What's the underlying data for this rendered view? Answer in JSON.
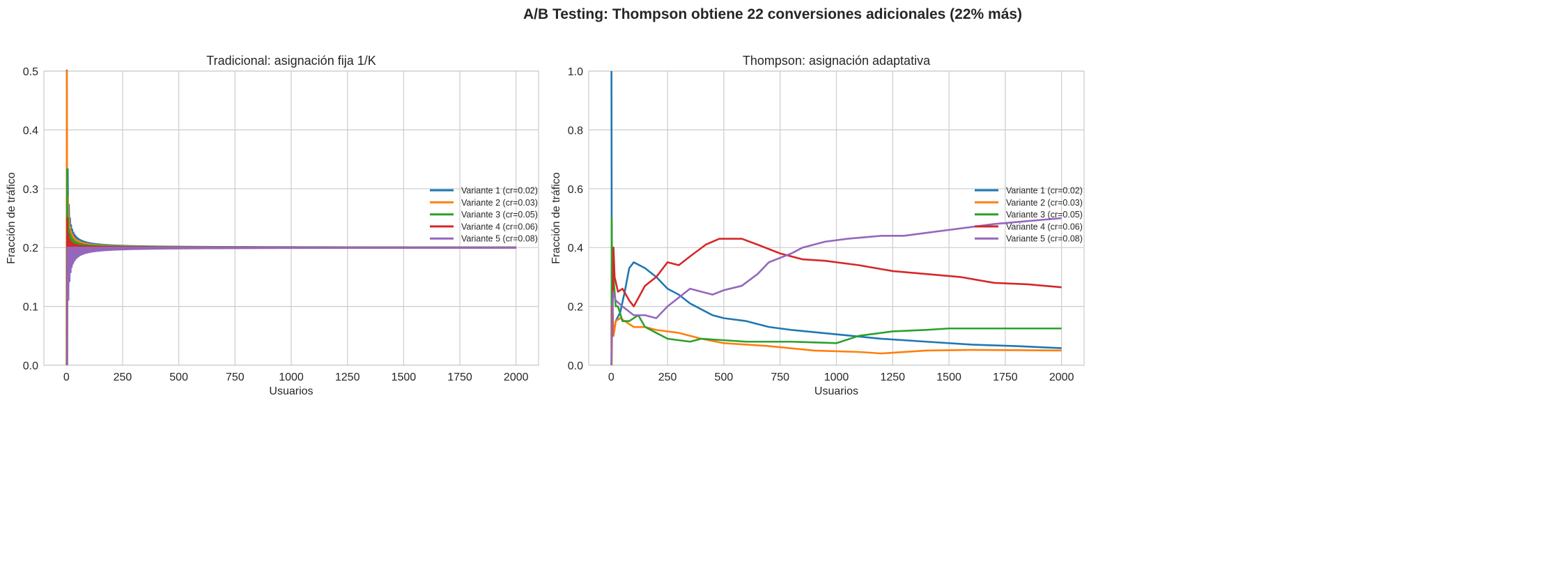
{
  "suptitle": "A/B Testing: Thompson obtiene 22 conversiones adicionales (22% más)",
  "colors": [
    "#1f77b4",
    "#ff7f0e",
    "#2ca02c",
    "#d62728",
    "#9467bd"
  ],
  "chart_data": [
    {
      "type": "line",
      "title": "Tradicional: asignación fija 1/K",
      "xlabel": "Usuarios",
      "ylabel": "Fracción de tráfico",
      "xlim": [
        -100,
        2100
      ],
      "ylim": [
        0,
        0.5
      ],
      "xticks": [
        0,
        250,
        500,
        750,
        1000,
        1250,
        1500,
        1750,
        2000
      ],
      "yticks": [
        0.0,
        0.1,
        0.2,
        0.3,
        0.4,
        0.5
      ],
      "xtick_labels": [
        "0",
        "250",
        "500",
        "750",
        "1000",
        "1250",
        "1500",
        "1750",
        "2000"
      ],
      "ytick_labels": [
        "0.0",
        "0.1",
        "0.2",
        "0.3",
        "0.4",
        "0.5"
      ],
      "grid": true,
      "legend_placement": "center-right",
      "allocation": "round-robin",
      "users": 2000,
      "variants": 5,
      "series": [
        {
          "name": "Variante 1 (cr=0.02)"
        },
        {
          "name": "Variante 2 (cr=0.03)"
        },
        {
          "name": "Variante 3 (cr=0.05)"
        },
        {
          "name": "Variante 4 (cr=0.06)"
        },
        {
          "name": "Variante 5 (cr=0.08)"
        }
      ]
    },
    {
      "type": "line",
      "title": "Thompson: asignación adaptativa",
      "xlabel": "Usuarios",
      "ylabel": "Fracción de tráfico",
      "xlim": [
        -100,
        2100
      ],
      "ylim": [
        0,
        1.0
      ],
      "xticks": [
        0,
        250,
        500,
        750,
        1000,
        1250,
        1500,
        1750,
        2000
      ],
      "yticks": [
        0.0,
        0.2,
        0.4,
        0.6,
        0.8,
        1.0
      ],
      "xtick_labels": [
        "0",
        "250",
        "500",
        "750",
        "1000",
        "1250",
        "1500",
        "1750",
        "2000"
      ],
      "ytick_labels": [
        "0.0",
        "0.2",
        "0.4",
        "0.6",
        "0.8",
        "1.0"
      ],
      "grid": true,
      "legend_placement": "center-right",
      "series": [
        {
          "name": "Variante 1 (cr=0.02)",
          "x": [
            1,
            2,
            5,
            10,
            20,
            40,
            60,
            80,
            100,
            150,
            200,
            250,
            300,
            350,
            400,
            450,
            500,
            600,
            700,
            800,
            1000,
            1200,
            1400,
            1600,
            1800,
            2000
          ],
          "y": [
            1.0,
            0.5,
            0.2,
            0.1,
            0.15,
            0.18,
            0.25,
            0.33,
            0.35,
            0.33,
            0.3,
            0.26,
            0.24,
            0.21,
            0.19,
            0.17,
            0.16,
            0.15,
            0.13,
            0.12,
            0.105,
            0.09,
            0.08,
            0.07,
            0.065,
            0.058
          ]
        },
        {
          "name": "Variante 2 (cr=0.03)",
          "x": [
            1,
            2,
            5,
            10,
            20,
            40,
            60,
            100,
            150,
            200,
            300,
            400,
            500,
            700,
            900,
            1100,
            1200,
            1400,
            1600,
            1800,
            2000
          ],
          "y": [
            0.0,
            0.0,
            0.2,
            0.1,
            0.15,
            0.16,
            0.15,
            0.13,
            0.13,
            0.12,
            0.11,
            0.09,
            0.075,
            0.065,
            0.05,
            0.045,
            0.04,
            0.05,
            0.052,
            0.051,
            0.05
          ]
        },
        {
          "name": "Variante 3 (cr=0.05)",
          "x": [
            1,
            2,
            5,
            10,
            20,
            30,
            50,
            80,
            120,
            150,
            200,
            250,
            350,
            400,
            600,
            800,
            1000,
            1100,
            1250,
            1400,
            1500,
            1750,
            2000
          ],
          "y": [
            0.0,
            0.5,
            0.2,
            0.3,
            0.2,
            0.2,
            0.15,
            0.15,
            0.17,
            0.13,
            0.11,
            0.09,
            0.08,
            0.09,
            0.08,
            0.08,
            0.075,
            0.1,
            0.115,
            0.12,
            0.125,
            0.125,
            0.125
          ]
        },
        {
          "name": "Variante 4 (cr=0.06)",
          "x": [
            1,
            3,
            5,
            10,
            15,
            30,
            50,
            80,
            100,
            150,
            200,
            250,
            300,
            350,
            420,
            480,
            580,
            650,
            750,
            850,
            950,
            1100,
            1250,
            1400,
            1550,
            1700,
            1850,
            2000
          ],
          "y": [
            0.0,
            0.2,
            0.1,
            0.4,
            0.3,
            0.25,
            0.26,
            0.22,
            0.2,
            0.27,
            0.3,
            0.35,
            0.34,
            0.37,
            0.41,
            0.43,
            0.43,
            0.41,
            0.38,
            0.36,
            0.355,
            0.34,
            0.32,
            0.31,
            0.3,
            0.28,
            0.275,
            0.265
          ]
        },
        {
          "name": "Variante 5 (cr=0.08)",
          "x": [
            1,
            3,
            5,
            10,
            20,
            50,
            100,
            150,
            200,
            250,
            300,
            350,
            400,
            450,
            500,
            580,
            650,
            700,
            800,
            850,
            950,
            1050,
            1200,
            1300,
            1400,
            1500,
            1600,
            1700,
            1850,
            2000
          ],
          "y": [
            0.0,
            0.1,
            0.2,
            0.25,
            0.22,
            0.2,
            0.17,
            0.17,
            0.16,
            0.2,
            0.23,
            0.26,
            0.25,
            0.24,
            0.255,
            0.27,
            0.31,
            0.35,
            0.38,
            0.4,
            0.42,
            0.43,
            0.44,
            0.44,
            0.45,
            0.46,
            0.47,
            0.48,
            0.49,
            0.5
          ]
        }
      ]
    }
  ]
}
